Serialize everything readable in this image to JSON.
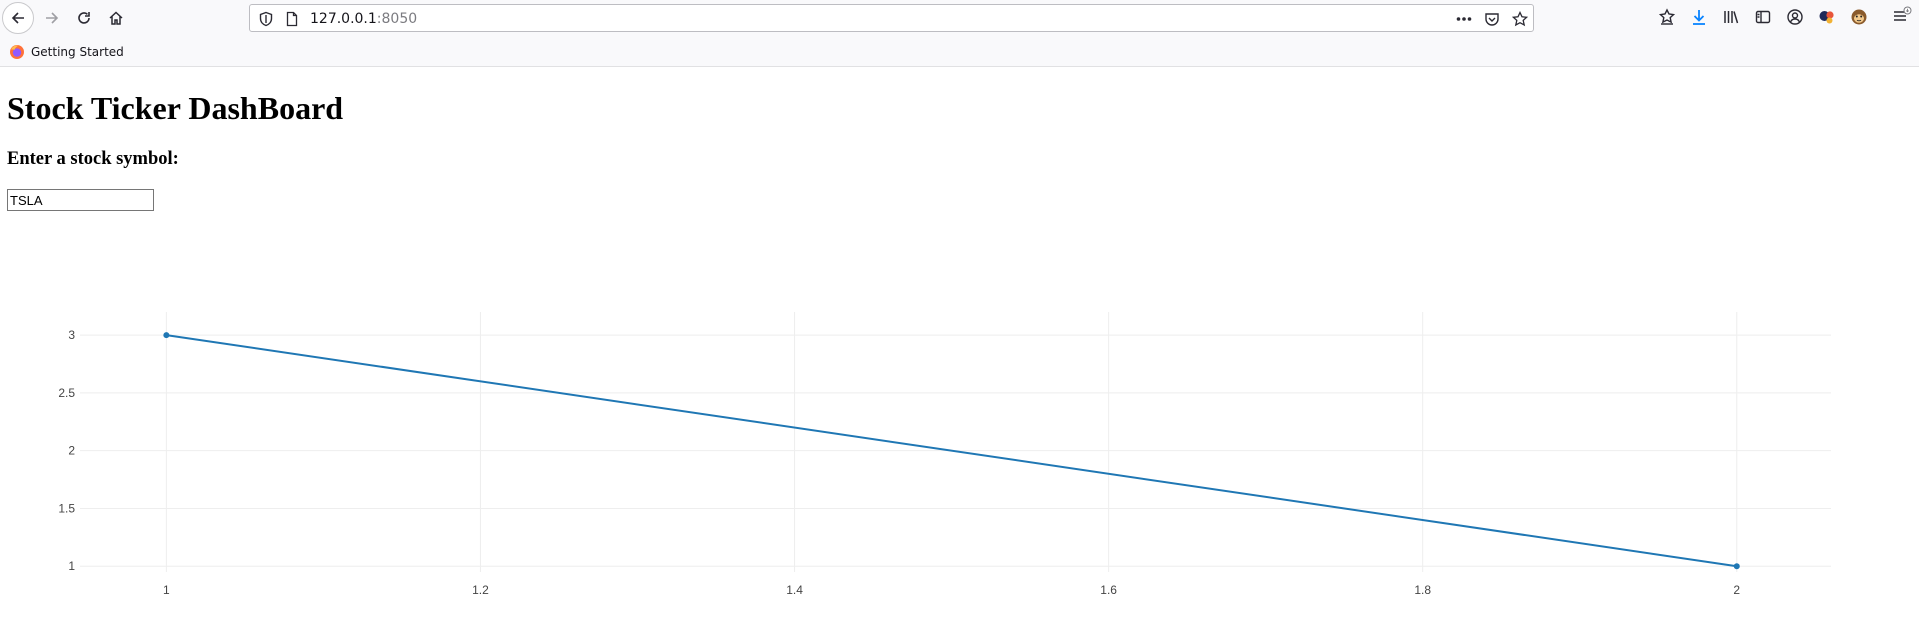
{
  "browser": {
    "url_host": "127.0.0.1",
    "url_port": ":8050",
    "bookmark": "Getting Started"
  },
  "page": {
    "title": "Stock Ticker DashBoard",
    "prompt": "Enter a stock symbol:",
    "symbol_value": "TSLA"
  },
  "colors": {
    "line": "#1f77b4",
    "grid": "#eeeeee"
  },
  "chart_data": {
    "type": "line",
    "title": "",
    "xlabel": "",
    "ylabel": "",
    "xlim": [
      0.945,
      2.06
    ],
    "ylim": [
      0.95,
      3.2
    ],
    "x_ticks": [
      1,
      1.2,
      1.4,
      1.6,
      1.8,
      2
    ],
    "x_tick_labels": [
      "1",
      "1.2",
      "1.4",
      "1.6",
      "1.8",
      "2"
    ],
    "y_ticks": [
      1,
      1.5,
      2,
      2.5,
      3
    ],
    "y_tick_labels": [
      "1",
      "1.5",
      "2",
      "2.5",
      "3"
    ],
    "grid": true,
    "legend": "none",
    "series": [
      {
        "x": [
          1,
          2
        ],
        "y": [
          3,
          1
        ],
        "mode": "lines+markers"
      }
    ]
  }
}
